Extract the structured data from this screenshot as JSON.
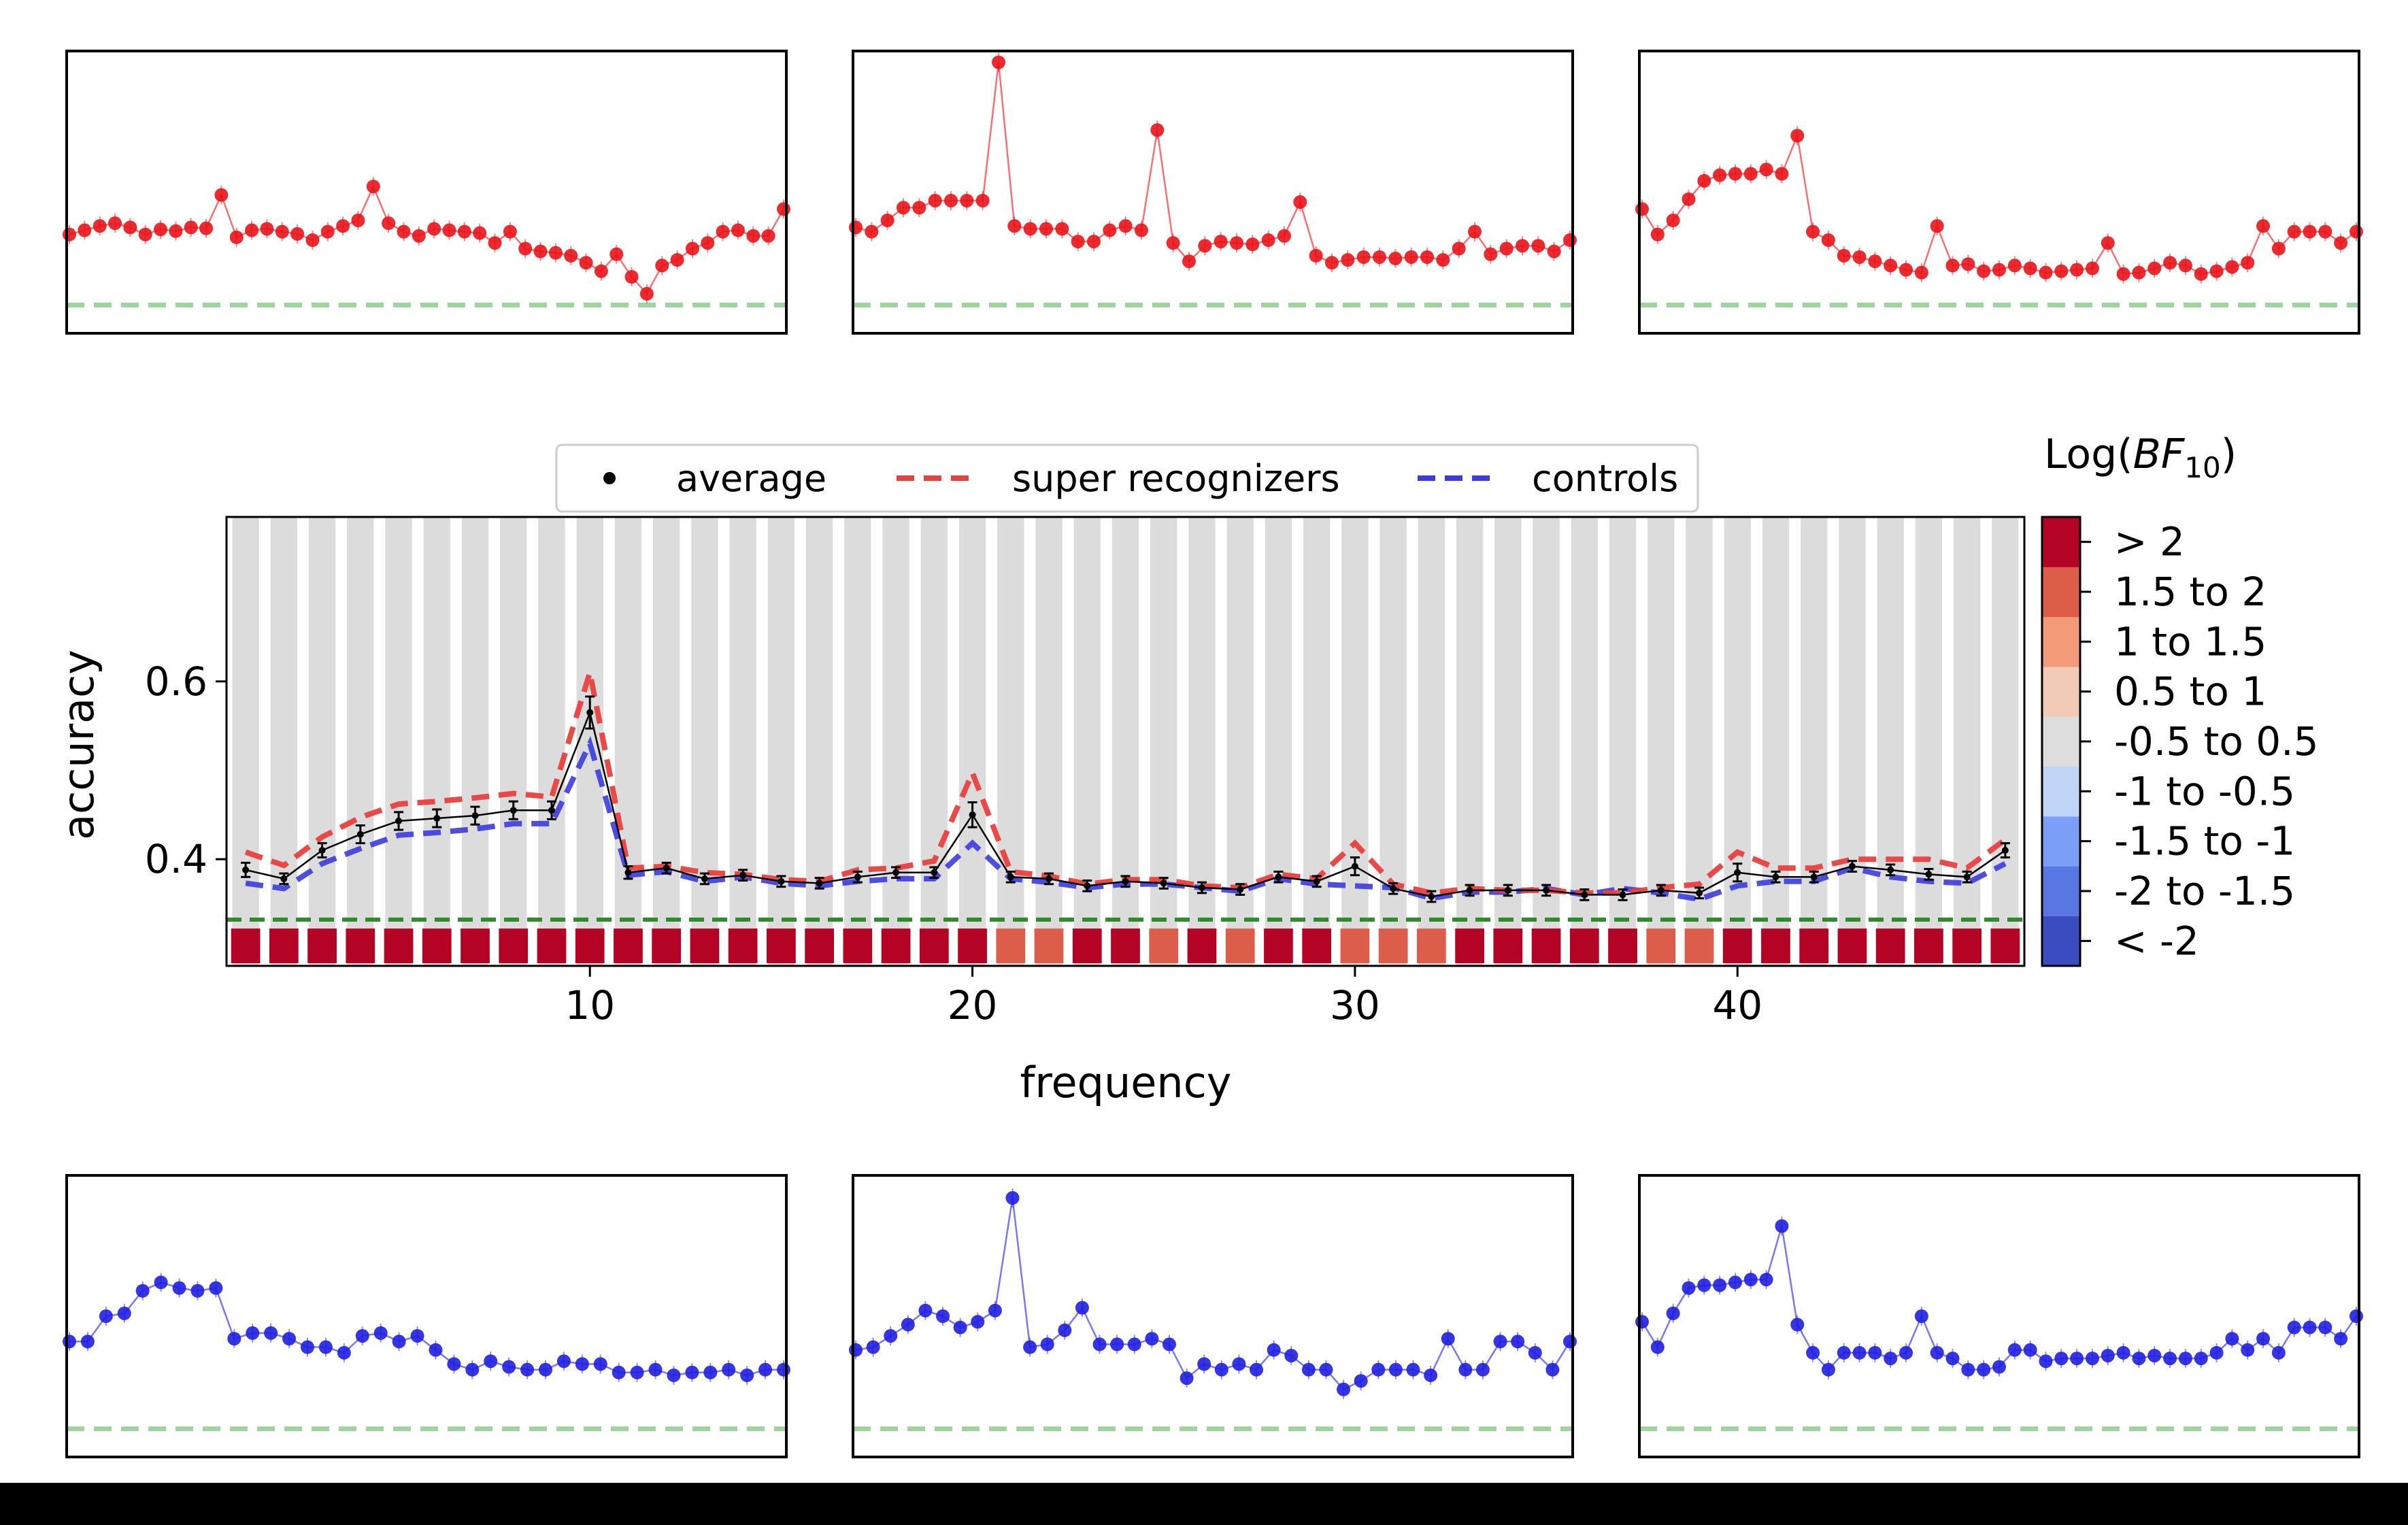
{
  "colors": {
    "super_recognizers": "#e8403e",
    "controls": "#3b3be0",
    "average": "#000000",
    "small_red": "#e8141a",
    "small_blue": "#1f1fe0",
    "chance": "#2e8b2e",
    "chance_light": "#9fd49f",
    "band": "#dcdcdc",
    "cbar": [
      "#3b4cc0",
      "#5977e3",
      "#7b9ff9",
      "#c0d4f5",
      "#dddddd",
      "#f2cbb7",
      "#f39a7b",
      "#dc5d4a",
      "#b40426"
    ]
  },
  "chart_data": {
    "type": "line",
    "xlabel": "frequency",
    "ylabel": "accuracy",
    "xticks": [
      10,
      20,
      30,
      40
    ],
    "yticks": [
      0.4,
      0.6
    ],
    "xlim": [
      0.5,
      47.5
    ],
    "ylim": [
      0.28,
      0.785
    ],
    "chance_level": 0.332,
    "legend": {
      "placement": "top-center",
      "entries": [
        {
          "key": "average",
          "label": "average"
        },
        {
          "key": "super_recognizers",
          "label": "super recognizers"
        },
        {
          "key": "controls",
          "label": "controls"
        }
      ]
    },
    "x": [
      1,
      2,
      3,
      4,
      5,
      6,
      7,
      8,
      9,
      10,
      11,
      12,
      13,
      14,
      15,
      16,
      17,
      18,
      19,
      20,
      21,
      22,
      23,
      24,
      25,
      26,
      27,
      28,
      29,
      30,
      31,
      32,
      33,
      34,
      35,
      36,
      37,
      38,
      39,
      40,
      41,
      42,
      43,
      44,
      45,
      46,
      47
    ],
    "series": [
      {
        "key": "average",
        "values": [
          0.388,
          0.378,
          0.41,
          0.428,
          0.443,
          0.446,
          0.449,
          0.455,
          0.455,
          0.565,
          0.385,
          0.39,
          0.378,
          0.382,
          0.375,
          0.373,
          0.38,
          0.385,
          0.385,
          0.45,
          0.38,
          0.378,
          0.37,
          0.375,
          0.373,
          0.368,
          0.366,
          0.38,
          0.375,
          0.392,
          0.367,
          0.358,
          0.365,
          0.365,
          0.365,
          0.36,
          0.36,
          0.365,
          0.362,
          0.385,
          0.38,
          0.38,
          0.392,
          0.388,
          0.383,
          0.38,
          0.41
        ]
      },
      {
        "key": "super_recognizers",
        "values": [
          0.408,
          0.393,
          0.425,
          0.447,
          0.462,
          0.465,
          0.469,
          0.474,
          0.47,
          0.61,
          0.39,
          0.392,
          0.385,
          0.383,
          0.377,
          0.375,
          0.388,
          0.39,
          0.398,
          0.497,
          0.386,
          0.381,
          0.372,
          0.377,
          0.377,
          0.37,
          0.368,
          0.383,
          0.378,
          0.418,
          0.372,
          0.362,
          0.367,
          0.365,
          0.365,
          0.362,
          0.362,
          0.368,
          0.372,
          0.408,
          0.39,
          0.39,
          0.4,
          0.4,
          0.4,
          0.39,
          0.422
        ]
      },
      {
        "key": "controls",
        "values": [
          0.373,
          0.367,
          0.395,
          0.412,
          0.427,
          0.43,
          0.434,
          0.44,
          0.44,
          0.53,
          0.382,
          0.386,
          0.375,
          0.38,
          0.373,
          0.37,
          0.375,
          0.378,
          0.378,
          0.418,
          0.378,
          0.374,
          0.368,
          0.372,
          0.372,
          0.368,
          0.364,
          0.378,
          0.372,
          0.37,
          0.368,
          0.356,
          0.363,
          0.363,
          0.367,
          0.36,
          0.367,
          0.362,
          0.355,
          0.37,
          0.375,
          0.375,
          0.39,
          0.38,
          0.375,
          0.373,
          0.395
        ]
      }
    ],
    "errors": [
      0.008,
      0.006,
      0.008,
      0.01,
      0.01,
      0.01,
      0.01,
      0.01,
      0.01,
      0.018,
      0.007,
      0.006,
      0.006,
      0.006,
      0.006,
      0.006,
      0.006,
      0.006,
      0.006,
      0.014,
      0.006,
      0.006,
      0.006,
      0.006,
      0.006,
      0.006,
      0.006,
      0.006,
      0.006,
      0.01,
      0.006,
      0.006,
      0.006,
      0.006,
      0.006,
      0.006,
      0.006,
      0.006,
      0.006,
      0.01,
      0.006,
      0.006,
      0.006,
      0.006,
      0.006,
      0.006,
      0.008
    ],
    "bayes_factor_bins": [
      8,
      8,
      8,
      8,
      8,
      8,
      8,
      8,
      8,
      8,
      8,
      8,
      8,
      8,
      8,
      8,
      8,
      8,
      8,
      8,
      7,
      7,
      8,
      8,
      7,
      8,
      7,
      8,
      8,
      7,
      7,
      7,
      8,
      8,
      8,
      8,
      8,
      7,
      7,
      8,
      8,
      8,
      8,
      8,
      8,
      8,
      8
    ],
    "colorbar": {
      "title_prefix": "Log(",
      "title_var": "BF",
      "title_sub": "10",
      "title_suffix": ")",
      "labels": [
        "< -2",
        "-2 to -1.5",
        "-1.5 to -1",
        "-1 to -0.5",
        "-0.5 to 0.5",
        "0.5 to 1",
        "1 to 1.5",
        "1.5 to 2",
        "> 2"
      ]
    },
    "small_multiples": [
      {
        "row": "top",
        "series": "super_recognizers",
        "values": [
          0.35,
          0.365,
          0.38,
          0.39,
          0.375,
          0.35,
          0.368,
          0.362,
          0.375,
          0.372,
          0.49,
          0.34,
          0.365,
          0.37,
          0.36,
          0.352,
          0.33,
          0.36,
          0.38,
          0.4,
          0.52,
          0.39,
          0.36,
          0.345,
          0.37,
          0.365,
          0.36,
          0.355,
          0.32,
          0.36,
          0.3,
          0.29,
          0.285,
          0.275,
          0.25,
          0.22,
          0.28,
          0.2,
          0.14,
          0.24,
          0.26,
          0.3,
          0.32,
          0.36,
          0.365,
          0.345,
          0.345,
          0.44
        ]
      },
      {
        "row": "top",
        "series": "super_recognizers",
        "values": [
          0.375,
          0.36,
          0.4,
          0.445,
          0.445,
          0.47,
          0.47,
          0.47,
          0.47,
          0.96,
          0.38,
          0.37,
          0.37,
          0.37,
          0.325,
          0.325,
          0.365,
          0.38,
          0.365,
          0.72,
          0.32,
          0.255,
          0.31,
          0.325,
          0.32,
          0.315,
          0.33,
          0.345,
          0.465,
          0.275,
          0.25,
          0.26,
          0.27,
          0.27,
          0.265,
          0.27,
          0.27,
          0.26,
          0.3,
          0.36,
          0.28,
          0.3,
          0.31,
          0.31,
          0.29,
          0.33
        ]
      },
      {
        "row": "top",
        "series": "super_recognizers",
        "values": [
          0.44,
          0.35,
          0.4,
          0.475,
          0.54,
          0.56,
          0.565,
          0.565,
          0.58,
          0.565,
          0.7,
          0.36,
          0.33,
          0.275,
          0.27,
          0.255,
          0.24,
          0.225,
          0.215,
          0.38,
          0.24,
          0.245,
          0.22,
          0.225,
          0.24,
          0.23,
          0.215,
          0.22,
          0.225,
          0.23,
          0.32,
          0.21,
          0.215,
          0.23,
          0.25,
          0.24,
          0.21,
          0.22,
          0.235,
          0.25,
          0.38,
          0.3,
          0.36,
          0.36,
          0.36,
          0.32,
          0.36
        ]
      },
      {
        "row": "bottom",
        "series": "controls",
        "values": [
          0.41,
          0.41,
          0.5,
          0.51,
          0.59,
          0.62,
          0.6,
          0.59,
          0.6,
          0.42,
          0.44,
          0.44,
          0.42,
          0.39,
          0.39,
          0.37,
          0.43,
          0.44,
          0.41,
          0.43,
          0.38,
          0.33,
          0.31,
          0.34,
          0.32,
          0.31,
          0.31,
          0.34,
          0.33,
          0.33,
          0.3,
          0.3,
          0.31,
          0.29,
          0.3,
          0.3,
          0.31,
          0.29,
          0.31,
          0.31
        ]
      },
      {
        "row": "bottom",
        "series": "controls",
        "values": [
          0.38,
          0.39,
          0.43,
          0.47,
          0.52,
          0.5,
          0.46,
          0.48,
          0.52,
          0.92,
          0.39,
          0.4,
          0.45,
          0.53,
          0.4,
          0.4,
          0.4,
          0.42,
          0.4,
          0.28,
          0.33,
          0.31,
          0.33,
          0.31,
          0.38,
          0.36,
          0.31,
          0.31,
          0.24,
          0.27,
          0.31,
          0.31,
          0.31,
          0.29,
          0.42,
          0.31,
          0.31,
          0.41,
          0.41,
          0.37,
          0.31,
          0.41
        ]
      },
      {
        "row": "bottom",
        "series": "controls",
        "values": [
          0.48,
          0.39,
          0.51,
          0.6,
          0.61,
          0.61,
          0.62,
          0.63,
          0.63,
          0.82,
          0.47,
          0.37,
          0.31,
          0.37,
          0.37,
          0.37,
          0.35,
          0.37,
          0.5,
          0.37,
          0.35,
          0.31,
          0.31,
          0.32,
          0.38,
          0.38,
          0.34,
          0.35,
          0.35,
          0.35,
          0.36,
          0.37,
          0.35,
          0.36,
          0.35,
          0.35,
          0.35,
          0.37,
          0.42,
          0.38,
          0.42,
          0.37,
          0.46,
          0.46,
          0.46,
          0.42,
          0.5
        ]
      }
    ]
  }
}
